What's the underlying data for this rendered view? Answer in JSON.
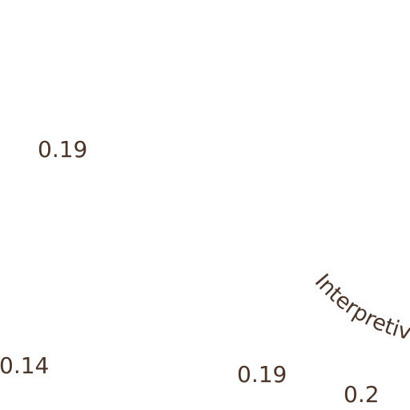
{
  "chart_data": {
    "type": "pie",
    "slices": [
      {
        "label": "",
        "value": 0.19
      },
      {
        "label": "",
        "value": 0.14
      },
      {
        "label": "",
        "value": 0.19
      },
      {
        "label": "",
        "value": 0.2
      }
    ],
    "category_labels": [
      "Interpretive"
    ],
    "text_color": "#4a3428",
    "background": "#ffffff"
  }
}
